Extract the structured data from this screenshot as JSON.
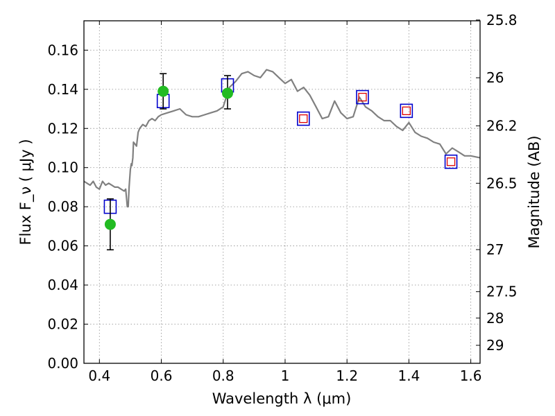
{
  "chart_data": {
    "type": "scatter",
    "xlabel": "Wavelength  λ (μm)",
    "ylabel": "Flux  F_ν  ( μJy )",
    "y2label": "Magnitude (AB)",
    "xlim": [
      0.35,
      1.63
    ],
    "ylim": [
      0.0,
      0.175
    ],
    "grid": true,
    "x_ticks": [
      0.4,
      0.6,
      0.8,
      1.0,
      1.2,
      1.4,
      1.6
    ],
    "x_tick_labels": [
      "0.4",
      "0.6",
      "0.8",
      "1",
      "1.2",
      "1.4",
      "1.6"
    ],
    "y_ticks": [
      0.0,
      0.02,
      0.04,
      0.06,
      0.08,
      0.1,
      0.12,
      0.14,
      0.16
    ],
    "y_tick_labels": [
      "0.00",
      "0.02",
      "0.04",
      "0.06",
      "0.08",
      "0.10",
      "0.12",
      "0.14",
      "0.16"
    ],
    "y2_ticks": [
      {
        "label": "25.8",
        "flux": 0.1754
      },
      {
        "label": "26",
        "flux": 0.1459
      },
      {
        "label": "26.2",
        "flux": 0.1213
      },
      {
        "label": "26.5",
        "flux": 0.092
      },
      {
        "label": "27",
        "flux": 0.0581
      },
      {
        "label": "27.5",
        "flux": 0.0366
      },
      {
        "label": "28",
        "flux": 0.0231
      },
      {
        "label": "29",
        "flux": 0.0092
      }
    ],
    "series": [
      {
        "kind": "model_spectrum",
        "color": "#808080",
        "x": [
          0.35,
          0.36,
          0.37,
          0.38,
          0.39,
          0.4,
          0.41,
          0.42,
          0.43,
          0.44,
          0.45,
          0.46,
          0.47,
          0.48,
          0.485,
          0.49,
          0.493,
          0.496,
          0.5,
          0.503,
          0.505,
          0.508,
          0.51,
          0.515,
          0.52,
          0.525,
          0.53,
          0.54,
          0.55,
          0.56,
          0.57,
          0.58,
          0.59,
          0.6,
          0.62,
          0.64,
          0.66,
          0.68,
          0.7,
          0.72,
          0.74,
          0.76,
          0.78,
          0.8,
          0.82,
          0.84,
          0.86,
          0.88,
          0.9,
          0.92,
          0.94,
          0.96,
          0.98,
          1.0,
          1.02,
          1.04,
          1.06,
          1.08,
          1.1,
          1.12,
          1.14,
          1.16,
          1.18,
          1.2,
          1.22,
          1.24,
          1.26,
          1.28,
          1.3,
          1.32,
          1.34,
          1.36,
          1.38,
          1.4,
          1.42,
          1.44,
          1.46,
          1.48,
          1.5,
          1.52,
          1.54,
          1.56,
          1.58,
          1.6,
          1.63
        ],
        "y": [
          0.093,
          0.092,
          0.091,
          0.093,
          0.09,
          0.089,
          0.093,
          0.091,
          0.092,
          0.091,
          0.09,
          0.09,
          0.089,
          0.088,
          0.089,
          0.08,
          0.08,
          0.09,
          0.099,
          0.102,
          0.101,
          0.105,
          0.113,
          0.112,
          0.111,
          0.118,
          0.12,
          0.122,
          0.121,
          0.124,
          0.125,
          0.124,
          0.126,
          0.127,
          0.128,
          0.129,
          0.13,
          0.127,
          0.126,
          0.126,
          0.127,
          0.128,
          0.129,
          0.131,
          0.141,
          0.144,
          0.148,
          0.149,
          0.147,
          0.146,
          0.15,
          0.149,
          0.146,
          0.143,
          0.145,
          0.139,
          0.141,
          0.137,
          0.131,
          0.125,
          0.126,
          0.134,
          0.128,
          0.125,
          0.126,
          0.136,
          0.131,
          0.129,
          0.126,
          0.124,
          0.124,
          0.121,
          0.119,
          0.123,
          0.118,
          0.116,
          0.115,
          0.113,
          0.112,
          0.107,
          0.11,
          0.108,
          0.106,
          0.106,
          0.105
        ]
      },
      {
        "name": "",
        "kind": "photometry_observed",
        "marker": "circle",
        "color": "#22bb22",
        "points": [
          {
            "x": 0.435,
            "y": 0.071,
            "err_low": 0.058,
            "err_high": 0.084
          },
          {
            "x": 0.606,
            "y": 0.139,
            "err_low": 0.13,
            "err_high": 0.148
          },
          {
            "x": 0.814,
            "y": 0.138,
            "err_low": 0.13,
            "err_high": 0.147
          }
        ]
      },
      {
        "name": "",
        "kind": "model_photometry",
        "marker": "open-square",
        "color": "#0000cc",
        "points": [
          {
            "x": 0.435,
            "y": 0.08
          },
          {
            "x": 0.606,
            "y": 0.134
          },
          {
            "x": 0.814,
            "y": 0.142
          },
          {
            "x": 1.059,
            "y": 0.125
          },
          {
            "x": 1.25,
            "y": 0.136
          },
          {
            "x": 1.392,
            "y": 0.129
          },
          {
            "x": 1.536,
            "y": 0.103
          }
        ]
      },
      {
        "name": "",
        "kind": "model_photometry_inner",
        "marker": "open-square-small",
        "color": "#dd0000",
        "points": [
          {
            "x": 1.059,
            "y": 0.125
          },
          {
            "x": 1.25,
            "y": 0.136
          },
          {
            "x": 1.392,
            "y": 0.129
          },
          {
            "x": 1.536,
            "y": 0.103
          }
        ]
      }
    ]
  }
}
